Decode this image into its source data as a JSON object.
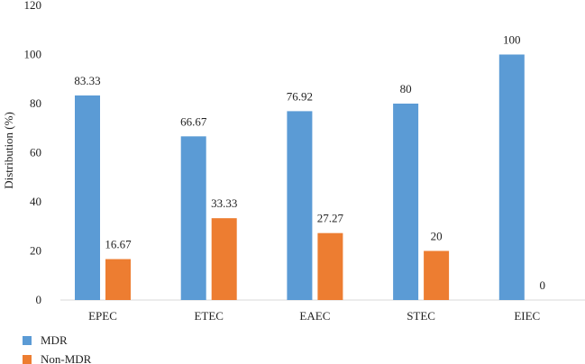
{
  "chart_data": {
    "type": "bar",
    "categories": [
      "EPEC",
      "ETEC",
      "EAEC",
      "STEC",
      "EIEC"
    ],
    "series": [
      {
        "name": "MDR",
        "values": [
          83.33,
          66.67,
          76.92,
          80,
          100
        ],
        "labels": [
          "83.33",
          "66.67",
          "76.92",
          "80",
          "100"
        ],
        "color": "#5B9BD5"
      },
      {
        "name": "Non-MDR",
        "values": [
          16.67,
          33.33,
          27.27,
          20,
          0
        ],
        "labels": [
          "16.67",
          "33.33",
          "27.27",
          "20",
          "0"
        ],
        "color": "#ED7D31"
      }
    ],
    "title": "",
    "xlabel": "",
    "ylabel": "Distribution (%)",
    "ylim": [
      0,
      120
    ],
    "yticks": [
      0,
      20,
      40,
      60,
      80,
      100,
      120
    ],
    "grid": false,
    "legend_position": "bottom-left"
  }
}
